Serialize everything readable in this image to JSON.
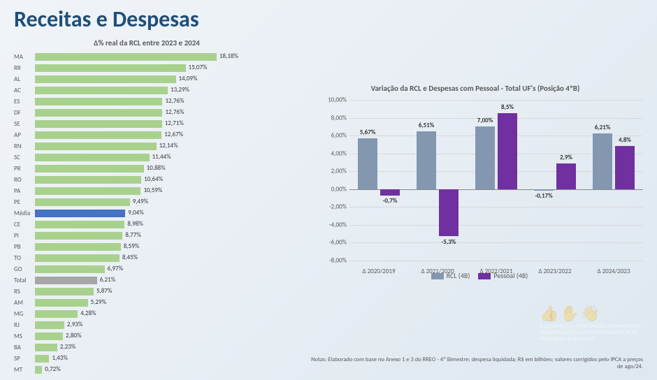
{
  "title": "Receitas e Despesas",
  "chart1": {
    "title": "Δ% real da RCL entre 2023 e 2024",
    "max": 18.18,
    "default_color": "#a9d18e",
    "rows": [
      {
        "label": "MA",
        "value": 18.18,
        "text": "18,18%"
      },
      {
        "label": "RR",
        "value": 15.07,
        "text": "15,07%"
      },
      {
        "label": "AL",
        "value": 14.09,
        "text": "14,09%"
      },
      {
        "label": "AC",
        "value": 13.29,
        "text": "13,29%"
      },
      {
        "label": "ES",
        "value": 12.76,
        "text": "12,76%"
      },
      {
        "label": "DF",
        "value": 12.76,
        "text": "12,76%"
      },
      {
        "label": "SE",
        "value": 12.71,
        "text": "12,71%"
      },
      {
        "label": "AP",
        "value": 12.67,
        "text": "12,67%"
      },
      {
        "label": "RN",
        "value": 12.14,
        "text": "12,14%"
      },
      {
        "label": "SC",
        "value": 11.44,
        "text": "11,44%"
      },
      {
        "label": "PR",
        "value": 10.88,
        "text": "10,88%"
      },
      {
        "label": "RO",
        "value": 10.64,
        "text": "10,64%"
      },
      {
        "label": "PA",
        "value": 10.59,
        "text": "10,59%"
      },
      {
        "label": "PE",
        "value": 9.49,
        "text": "9,49%"
      },
      {
        "label": "Média",
        "value": 9.04,
        "text": "9,04%",
        "color": "#4472c4"
      },
      {
        "label": "CE",
        "value": 8.98,
        "text": "8,98%"
      },
      {
        "label": "PI",
        "value": 8.77,
        "text": "8,77%"
      },
      {
        "label": "PB",
        "value": 8.59,
        "text": "8,59%"
      },
      {
        "label": "TO",
        "value": 8.45,
        "text": "8,45%"
      },
      {
        "label": "GO",
        "value": 6.97,
        "text": "6,97%"
      },
      {
        "label": "Total",
        "value": 6.21,
        "text": "6,21%",
        "color": "#a6a6a6"
      },
      {
        "label": "RS",
        "value": 5.87,
        "text": "5,87%"
      },
      {
        "label": "AM",
        "value": 5.29,
        "text": "5,29%"
      },
      {
        "label": "MG",
        "value": 4.28,
        "text": "4,28%"
      },
      {
        "label": "RJ",
        "value": 2.93,
        "text": "2,93%"
      },
      {
        "label": "MS",
        "value": 2.8,
        "text": "2,80%"
      },
      {
        "label": "BA",
        "value": 2.23,
        "text": "2,23%"
      },
      {
        "label": "SP",
        "value": 1.43,
        "text": "1,43%"
      },
      {
        "label": "MT",
        "value": 0.72,
        "text": "0,72%"
      }
    ]
  },
  "chart2": {
    "title": "Variação da RCL e Despesas com Pessoal - Total UF's (Posição 4ºB)",
    "ymin": -8,
    "ymax": 10,
    "ystep": 2,
    "categories": [
      "Δ 2020/2019",
      "Δ 2021/2020",
      "Δ 2022/2021",
      "Δ 2023/2022",
      "Δ 2024/2023"
    ],
    "series": [
      {
        "name": "RCL (4B)",
        "color": "#8497b0",
        "values": [
          5.67,
          6.51,
          7.0,
          -0.17,
          6.21
        ],
        "labels": [
          "5,67%",
          "6,51%",
          "7,00%",
          "-0,17%",
          "6,21%"
        ]
      },
      {
        "name": "Pessoal (4B)",
        "color": "#7030a0",
        "values": [
          -0.7,
          -5.3,
          8.5,
          2.9,
          4.8
        ],
        "labels": [
          "-0,7%",
          "-5,3%",
          "8,5%",
          "2,9%",
          "4,8%"
        ]
      }
    ],
    "grid_color": "#d9d9d9"
  },
  "footer": "Notas: Elaborado com base no Anexo 1 e 3 do RREO - 4º Bimestre; despesa liquidada; R$ em bilhões; valores corrigidos pelo IPCA a preços de ago/24.",
  "logo_text": "XI ENCONTRO DE COORDENAÇÃO ORÇAMENTÁRIA, FINANCEIRA E FISCAL INTERGOVERNAMENTAL DE PAÍSES IBERO-AMERICANOS"
}
